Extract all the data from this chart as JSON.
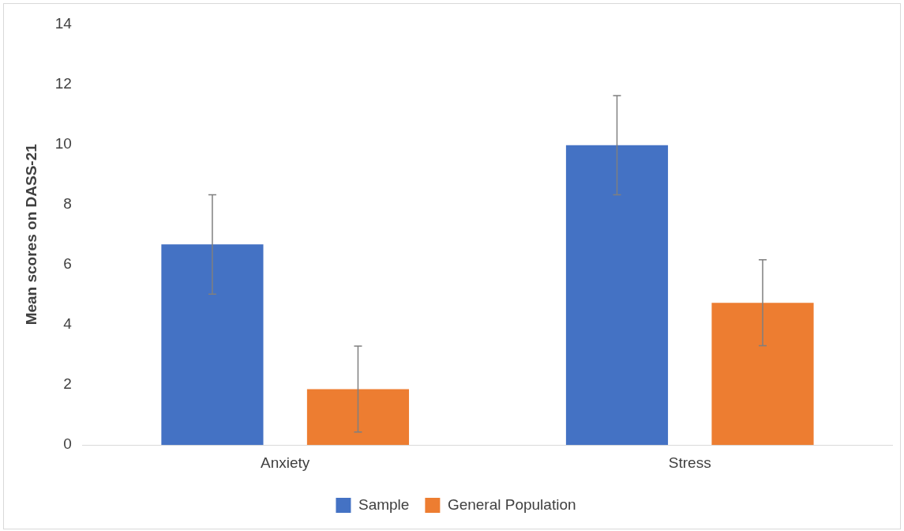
{
  "chart_data": {
    "type": "bar",
    "ylabel": "Mean scores on DASS-21",
    "categories": [
      "Anxiety",
      "Stress"
    ],
    "series": [
      {
        "name": "Sample",
        "color": "#4472c4",
        "values": [
          6.67,
          9.97
        ],
        "errors": [
          1.65,
          1.65
        ]
      },
      {
        "name": "General Population",
        "color": "#ed7d31",
        "values": [
          1.86,
          4.73
        ],
        "errors": [
          1.43,
          1.43
        ]
      }
    ],
    "ylim": [
      0,
      14
    ],
    "yticks": [
      0,
      2,
      4,
      6,
      8,
      10,
      12,
      14
    ],
    "grid": false,
    "legend": "bottom"
  }
}
